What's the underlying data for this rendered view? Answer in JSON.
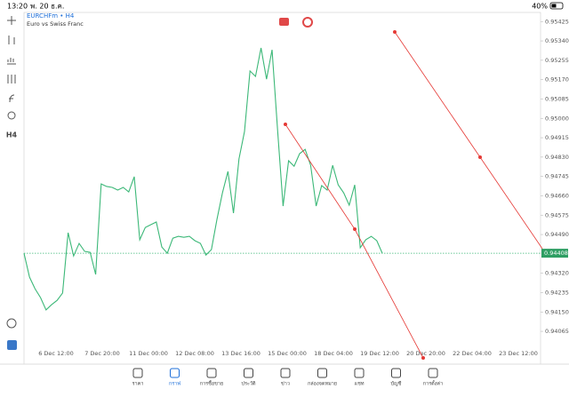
{
  "status_bar": {
    "time": "13:20",
    "date": "พ. 20 ธ.ค.",
    "battery": "40%"
  },
  "symbol": {
    "name": "EURCHFm • H4",
    "description": "Euro vs Swiss Franc"
  },
  "toolbar": {
    "timeframe": "H4"
  },
  "chart_data": {
    "type": "line",
    "series": [
      {
        "color": "#3cb878",
        "values": [
          0.94408,
          0.94303,
          0.94252,
          0.94213,
          0.94159,
          0.94182,
          0.94201,
          0.94233,
          0.94498,
          0.94396,
          0.94451,
          0.94416,
          0.94412,
          0.94315,
          0.94712,
          0.94701,
          0.94697,
          0.94685,
          0.94697,
          0.94677,
          0.94744,
          0.94467,
          0.94521,
          0.94533,
          0.94545,
          0.94435,
          0.94408,
          0.94474,
          0.94482,
          0.94478,
          0.94482,
          0.94463,
          0.94451,
          0.944,
          0.94424,
          0.94556,
          0.94673,
          0.94767,
          0.94584,
          0.94822,
          0.94942,
          0.95208,
          0.95184,
          0.95309,
          0.95172,
          0.95301,
          0.9495,
          0.94615,
          0.94814,
          0.9479,
          0.94845,
          0.94864,
          0.94794,
          0.94615,
          0.94705,
          0.94685,
          0.94794,
          0.94708,
          0.94673,
          0.94619,
          0.94708,
          0.94432,
          0.94467,
          0.94482,
          0.94463,
          0.94408
        ]
      }
    ],
    "ylim": [
      0.93921,
      0.95465
    ],
    "yticks": [
      {
        "value": 0.95425,
        "label": "0.95425"
      },
      {
        "value": 0.9534,
        "label": "0.95340"
      },
      {
        "value": 0.95255,
        "label": "0.95255"
      },
      {
        "value": 0.9517,
        "label": "0.95170"
      },
      {
        "value": 0.95085,
        "label": "0.95085"
      },
      {
        "value": 0.95,
        "label": "0.95000"
      },
      {
        "value": 0.94915,
        "label": "0.94915"
      },
      {
        "value": 0.9483,
        "label": "0.94830"
      },
      {
        "value": 0.94745,
        "label": "0.94745"
      },
      {
        "value": 0.9466,
        "label": "0.94660"
      },
      {
        "value": 0.94575,
        "label": "0.94575"
      },
      {
        "value": 0.9449,
        "label": "0.94490"
      },
      {
        "value": 0.9432,
        "label": "0.94320"
      },
      {
        "value": 0.94235,
        "label": "0.94235"
      },
      {
        "value": 0.9415,
        "label": "0.94150"
      },
      {
        "value": 0.94065,
        "label": "0.94065"
      }
    ],
    "current_price": 0.94408,
    "x_labels": [
      "6 Dec 12:00",
      "7 Dec 20:00",
      "11 Dec 00:00",
      "12 Dec 08:00",
      "13 Dec 16:00",
      "15 Dec 00:00",
      "18 Dec 04:00",
      "19 Dec 12:00",
      "20 Dec 20:00",
      "22 Dec 04:00",
      "23 Dec 12:00"
    ]
  },
  "nav": [
    "ราคา",
    "กราฟ",
    "การซื้อขาย",
    "ประวัติ",
    "ข่าว",
    "กล่องจดหมาย",
    "แชท",
    "บัญชี",
    "การตั้งค่า"
  ]
}
